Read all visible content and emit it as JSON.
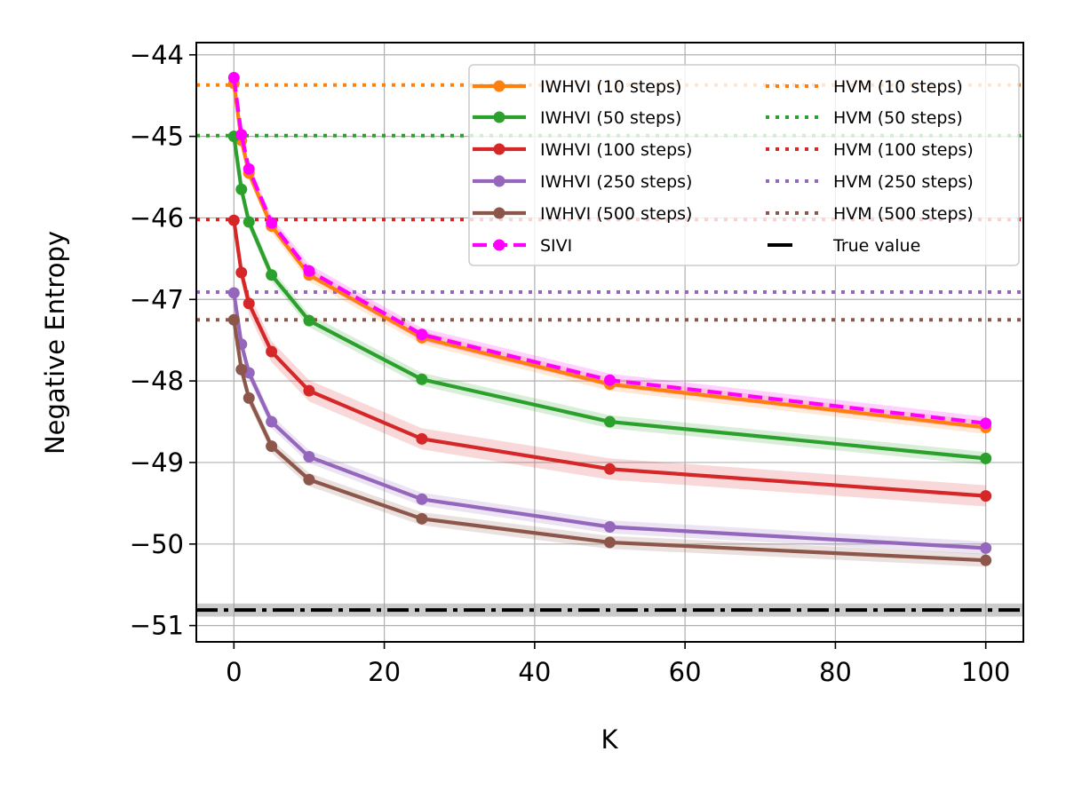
{
  "chart_data": {
    "type": "line",
    "title": "",
    "xlabel": "K",
    "ylabel": "Negative Entropy",
    "xlim": [
      -5,
      105
    ],
    "ylim": [
      -51.2,
      -43.85
    ],
    "xticks": [
      0,
      20,
      40,
      60,
      80,
      100
    ],
    "xtick_labels": [
      "0",
      "20",
      "40",
      "60",
      "80",
      "100"
    ],
    "yticks": [
      -51,
      -50,
      -49,
      -48,
      -47,
      -46,
      -45,
      -44
    ],
    "ytick_labels": [
      "−51",
      "−50",
      "−49",
      "−48",
      "−47",
      "−46",
      "−45",
      "−44"
    ],
    "grid": true,
    "legend_position": "top-right",
    "x": [
      0,
      1,
      2,
      5,
      10,
      25,
      50,
      100
    ],
    "series": [
      {
        "name": "IWHVI (10 steps)",
        "color": "#ff7f0e",
        "style": "solid-marker",
        "values": [
          -44.35,
          -45.05,
          -45.45,
          -46.1,
          -46.7,
          -47.47,
          -48.04,
          -48.57
        ],
        "band": 0.08
      },
      {
        "name": "IWHVI (50 steps)",
        "color": "#2ca02c",
        "style": "solid-marker",
        "values": [
          -45.0,
          -45.65,
          -46.05,
          -46.7,
          -47.26,
          -47.98,
          -48.5,
          -48.95
        ],
        "band": 0.08
      },
      {
        "name": "IWHVI (100 steps)",
        "color": "#d62728",
        "style": "solid-marker",
        "values": [
          -46.03,
          -46.67,
          -47.05,
          -47.64,
          -48.12,
          -48.71,
          -49.08,
          -49.41
        ],
        "band": 0.13
      },
      {
        "name": "IWHVI (250 steps)",
        "color": "#9467bd",
        "style": "solid-marker",
        "values": [
          -46.92,
          -47.55,
          -47.9,
          -48.5,
          -48.93,
          -49.45,
          -49.79,
          -50.05
        ],
        "band": 0.08
      },
      {
        "name": "IWHVI (500 steps)",
        "color": "#8c564b",
        "style": "solid-marker",
        "values": [
          -47.25,
          -47.86,
          -48.21,
          -48.8,
          -49.21,
          -49.69,
          -49.98,
          -50.2
        ],
        "band": 0.08
      },
      {
        "name": "SIVI",
        "color": "#ff00ff",
        "style": "dashed-marker",
        "values": [
          -44.28,
          -44.98,
          -45.4,
          -46.06,
          -46.65,
          -47.43,
          -47.99,
          -48.52
        ],
        "band": 0.08
      }
    ],
    "reference_lines": [
      {
        "name": "HVM (10 steps)",
        "color": "#ff7f0e",
        "value": -44.37,
        "style": "dotted"
      },
      {
        "name": "HVM (50 steps)",
        "color": "#2ca02c",
        "value": -44.99,
        "style": "dotted"
      },
      {
        "name": "HVM (100 steps)",
        "color": "#d62728",
        "value": -46.02,
        "style": "dotted"
      },
      {
        "name": "HVM (250 steps)",
        "color": "#9467bd",
        "value": -46.91,
        "style": "dotted"
      },
      {
        "name": "HVM (500 steps)",
        "color": "#8c564b",
        "value": -47.25,
        "style": "dotted"
      },
      {
        "name": "True value",
        "color": "#000000",
        "value": -50.81,
        "style": "dashdot",
        "band": 0.08
      }
    ]
  }
}
